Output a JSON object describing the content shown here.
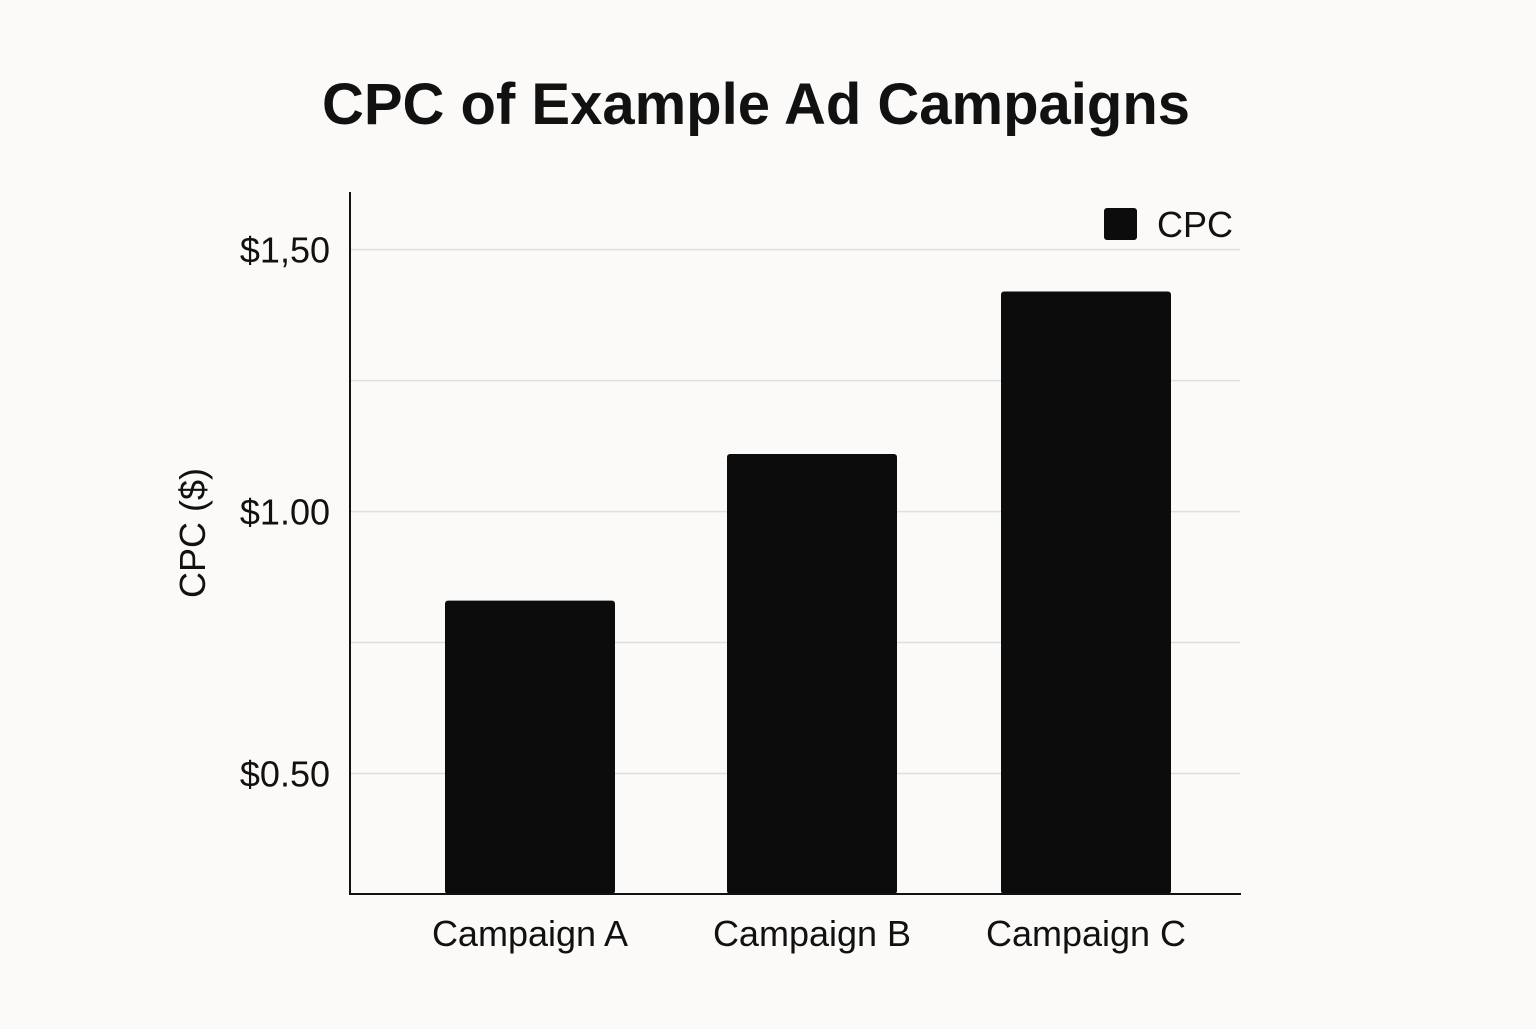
{
  "chart_data": {
    "type": "bar",
    "title": "CPC of Example Ad Campaigns",
    "xlabel": "",
    "ylabel": "CPC ($)",
    "categories": [
      "Campaign A",
      "Campaign B",
      "Campaign C"
    ],
    "series": [
      {
        "name": "CPC",
        "values": [
          0.83,
          1.11,
          1.42
        ]
      }
    ],
    "ylim": [
      0.27,
      1.61
    ],
    "y_ticks": [
      {
        "value": 0.5,
        "label": "$0.50"
      },
      {
        "value": 1.0,
        "label": "$1.00"
      },
      {
        "value": 1.5,
        "label": "$1,50"
      }
    ],
    "grid_lines": [
      0.5,
      0.75,
      1.0,
      1.25,
      1.5
    ],
    "grid": true,
    "legend_position": "top-right",
    "colors": {
      "bar": "#0c0c0c",
      "grid": "#dedede",
      "axis": "#111111",
      "background": "#fbfaf8"
    }
  }
}
